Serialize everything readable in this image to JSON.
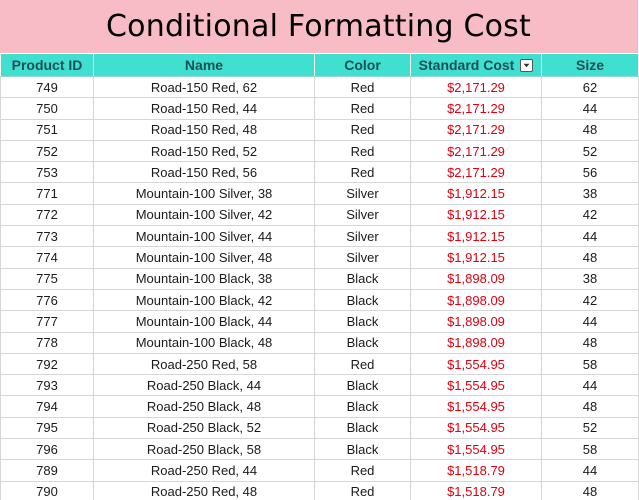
{
  "title": "Conditional Formatting Cost",
  "colors": {
    "title_background": "#f7bcc6",
    "header_background": "#40e0d0",
    "header_text": "#1f4e5a",
    "cost_text": "#e0000f"
  },
  "table": {
    "headers": {
      "product_id": "Product ID",
      "name": "Name",
      "color": "Color",
      "standard_cost": "Standard Cost",
      "size": "Size"
    },
    "filter_icon": "dropdown-arrow-icon",
    "rows": [
      {
        "id": "749",
        "name": "Road-150 Red, 62",
        "color": "Red",
        "cost": "$2,171.29",
        "size": "62"
      },
      {
        "id": "750",
        "name": "Road-150 Red, 44",
        "color": "Red",
        "cost": "$2,171.29",
        "size": "44"
      },
      {
        "id": "751",
        "name": "Road-150 Red, 48",
        "color": "Red",
        "cost": "$2,171.29",
        "size": "48"
      },
      {
        "id": "752",
        "name": "Road-150 Red, 52",
        "color": "Red",
        "cost": "$2,171.29",
        "size": "52"
      },
      {
        "id": "753",
        "name": "Road-150 Red, 56",
        "color": "Red",
        "cost": "$2,171.29",
        "size": "56"
      },
      {
        "id": "771",
        "name": "Mountain-100 Silver, 38",
        "color": "Silver",
        "cost": "$1,912.15",
        "size": "38"
      },
      {
        "id": "772",
        "name": "Mountain-100 Silver, 42",
        "color": "Silver",
        "cost": "$1,912.15",
        "size": "42"
      },
      {
        "id": "773",
        "name": "Mountain-100 Silver, 44",
        "color": "Silver",
        "cost": "$1,912.15",
        "size": "44"
      },
      {
        "id": "774",
        "name": "Mountain-100 Silver, 48",
        "color": "Silver",
        "cost": "$1,912.15",
        "size": "48"
      },
      {
        "id": "775",
        "name": "Mountain-100 Black, 38",
        "color": "Black",
        "cost": "$1,898.09",
        "size": "38"
      },
      {
        "id": "776",
        "name": "Mountain-100 Black, 42",
        "color": "Black",
        "cost": "$1,898.09",
        "size": "42"
      },
      {
        "id": "777",
        "name": "Mountain-100 Black, 44",
        "color": "Black",
        "cost": "$1,898.09",
        "size": "44"
      },
      {
        "id": "778",
        "name": "Mountain-100 Black, 48",
        "color": "Black",
        "cost": "$1,898.09",
        "size": "48"
      },
      {
        "id": "792",
        "name": "Road-250 Red, 58",
        "color": "Red",
        "cost": "$1,554.95",
        "size": "58"
      },
      {
        "id": "793",
        "name": "Road-250 Black, 44",
        "color": "Black",
        "cost": "$1,554.95",
        "size": "44"
      },
      {
        "id": "794",
        "name": "Road-250 Black, 48",
        "color": "Black",
        "cost": "$1,554.95",
        "size": "48"
      },
      {
        "id": "795",
        "name": "Road-250 Black, 52",
        "color": "Black",
        "cost": "$1,554.95",
        "size": "52"
      },
      {
        "id": "796",
        "name": "Road-250 Black, 58",
        "color": "Black",
        "cost": "$1,554.95",
        "size": "58"
      },
      {
        "id": "789",
        "name": "Road-250 Red, 44",
        "color": "Red",
        "cost": "$1,518.79",
        "size": "44"
      },
      {
        "id": "790",
        "name": "Road-250 Red, 48",
        "color": "Red",
        "cost": "$1,518.79",
        "size": "48"
      }
    ]
  }
}
